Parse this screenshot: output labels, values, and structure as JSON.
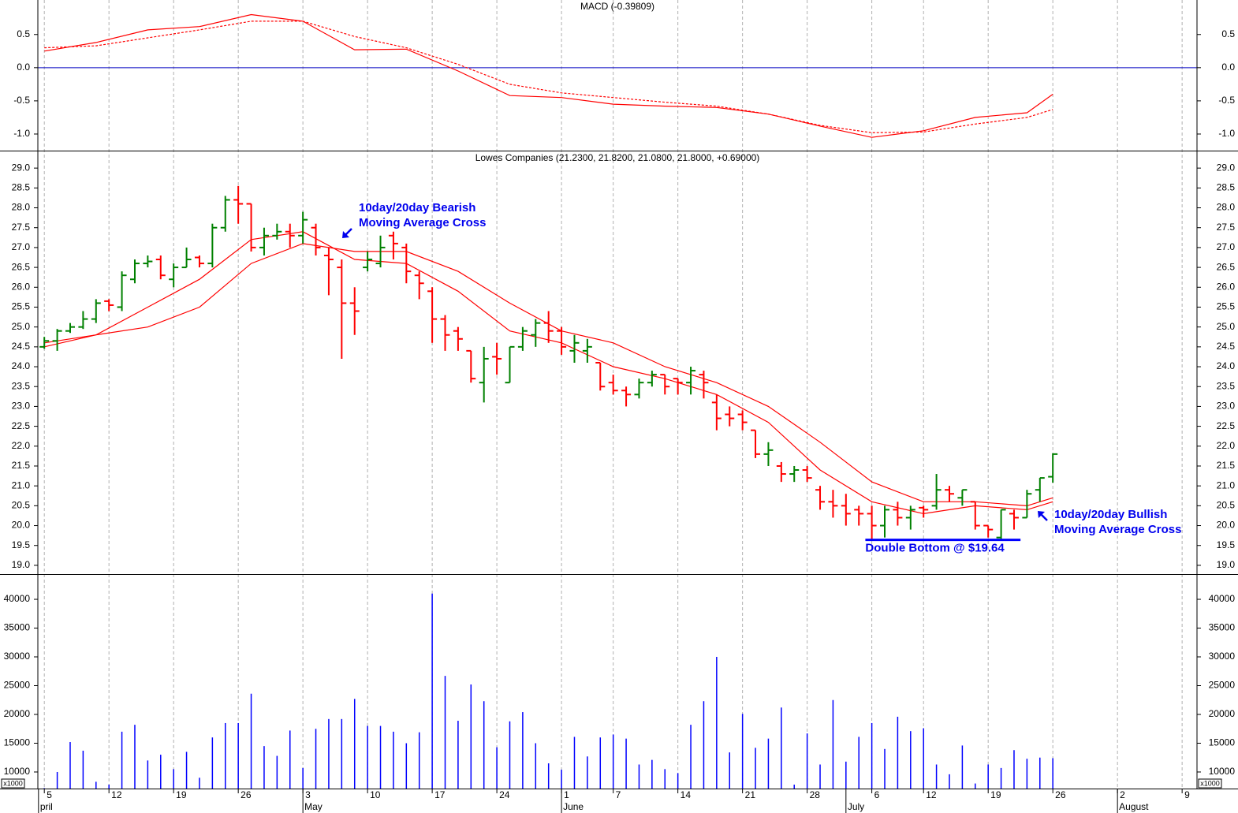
{
  "x_axis": {
    "xlim": [
      -0.5,
      89.15
    ],
    "grid": true,
    "xticks": [
      {
        "value": 0,
        "label": "5"
      },
      {
        "value": 5,
        "label": "12"
      },
      {
        "value": 10,
        "label": "19"
      },
      {
        "value": 15,
        "label": "26"
      },
      {
        "value": 20,
        "label": "3"
      },
      {
        "value": 25,
        "label": "10"
      },
      {
        "value": 30,
        "label": "17"
      },
      {
        "value": 35,
        "label": "24"
      },
      {
        "value": 40,
        "label": "1"
      },
      {
        "value": 44,
        "label": "7"
      },
      {
        "value": 49,
        "label": "14"
      },
      {
        "value": 54,
        "label": "21"
      },
      {
        "value": 59,
        "label": "28"
      },
      {
        "value": 64,
        "label": "6"
      },
      {
        "value": 68,
        "label": "12"
      },
      {
        "value": 73,
        "label": "19"
      },
      {
        "value": 78,
        "label": "26"
      },
      {
        "value": 83,
        "label": "2"
      },
      {
        "value": 88,
        "label": "9"
      }
    ],
    "month_ticks": [
      {
        "value": -0.45,
        "label": "pril"
      },
      {
        "value": 20,
        "label": "May"
      },
      {
        "value": 40,
        "label": "June"
      },
      {
        "value": 62,
        "label": "July"
      },
      {
        "value": 83,
        "label": "August"
      }
    ]
  },
  "chart_data": [
    {
      "type": "line",
      "title": "MACD (-0.39809)",
      "x": [
        0,
        4,
        8,
        12,
        16,
        20,
        24,
        28,
        32,
        36,
        40,
        44,
        48,
        52,
        56,
        60,
        64,
        68,
        72,
        76,
        78
      ],
      "series": [
        {
          "color": "#ff0000",
          "dashed": false,
          "values": [
            0.25,
            0.38,
            0.57,
            0.62,
            0.8,
            0.7,
            0.27,
            0.28,
            -0.05,
            -0.42,
            -0.45,
            -0.55,
            -0.58,
            -0.6,
            -0.7,
            -0.88,
            -1.05,
            -0.95,
            -0.75,
            -0.68,
            -0.4
          ]
        },
        {
          "color": "#ff0000",
          "dashed": true,
          "values": [
            0.3,
            0.33,
            0.45,
            0.57,
            0.7,
            0.7,
            0.47,
            0.3,
            0.05,
            -0.25,
            -0.38,
            -0.45,
            -0.52,
            -0.58,
            -0.7,
            -0.87,
            -0.98,
            -0.97,
            -0.85,
            -0.75,
            -0.63
          ]
        }
      ],
      "hline": {
        "value": 0,
        "color": "#0000c0"
      },
      "ylim": [
        -1.25,
        1.02
      ],
      "yticks": [
        {
          "value": -1,
          "label": "-1.0"
        },
        -0.5,
        {
          "value": 0,
          "label": "0.0"
        },
        0.5
      ]
    },
    {
      "type": "ohlc",
      "title": "Lowes Companies (21.2300, 21.8200, 21.0800, 21.8000, +0.69000)",
      "up_color": "#008000",
      "down_color": "#ff0000",
      "open": [
        24.5,
        24.65,
        24.9,
        25.0,
        25.2,
        25.65,
        25.5,
        26.2,
        26.6,
        26.7,
        26.2,
        26.5,
        26.75,
        26.6,
        27.5,
        28.2,
        28.1,
        27.0,
        27.3,
        27.4,
        27.3,
        27.5,
        26.8,
        26.5,
        25.6,
        26.5,
        26.6,
        27.3,
        27.0,
        26.3,
        25.9,
        25.2,
        24.9,
        24.4,
        23.6,
        24.25,
        23.6,
        24.5,
        24.8,
        25.1,
        24.9,
        24.4,
        24.4,
        24.1,
        23.6,
        23.4,
        23.3,
        23.6,
        23.8,
        23.7,
        23.6,
        23.8,
        23.1,
        22.8,
        22.8,
        22.4,
        21.8,
        21.5,
        21.3,
        21.4,
        20.9,
        20.6,
        20.5,
        20.4,
        20.3,
        20.0,
        20.4,
        20.2,
        20.45,
        20.5,
        20.9,
        20.7,
        20.6,
        20.0,
        19.7,
        20.3,
        20.2,
        20.9,
        21.23
      ],
      "high": [
        24.75,
        24.95,
        25.1,
        25.4,
        25.7,
        25.7,
        26.4,
        26.7,
        26.8,
        26.8,
        26.6,
        27.0,
        26.8,
        27.6,
        28.3,
        28.55,
        28.1,
        27.5,
        27.6,
        27.6,
        27.9,
        27.6,
        27.0,
        26.7,
        26.0,
        26.9,
        27.3,
        27.4,
        27.1,
        26.4,
        26.0,
        25.3,
        25.0,
        24.4,
        24.5,
        24.6,
        24.5,
        25.0,
        25.2,
        25.4,
        25.0,
        24.8,
        24.7,
        24.1,
        23.8,
        23.5,
        23.7,
        23.9,
        23.8,
        23.7,
        24.0,
        23.9,
        23.3,
        23.0,
        22.9,
        22.4,
        22.1,
        21.6,
        21.5,
        21.5,
        21.0,
        20.9,
        20.8,
        20.5,
        20.5,
        20.5,
        20.6,
        20.5,
        20.5,
        21.3,
        21.0,
        20.9,
        20.6,
        20.0,
        20.4,
        20.4,
        20.9,
        21.2,
        21.82
      ],
      "low": [
        24.45,
        24.4,
        24.85,
        24.95,
        25.1,
        25.4,
        25.4,
        26.1,
        26.5,
        26.2,
        26.0,
        26.5,
        26.5,
        26.5,
        27.4,
        27.6,
        26.9,
        26.8,
        27.2,
        27.0,
        27.1,
        26.8,
        25.8,
        24.2,
        24.8,
        26.4,
        26.5,
        26.7,
        26.1,
        25.7,
        24.6,
        24.4,
        24.4,
        23.6,
        23.1,
        23.8,
        23.6,
        24.4,
        24.5,
        24.6,
        24.3,
        24.1,
        24.1,
        23.4,
        23.3,
        23.0,
        23.2,
        23.5,
        23.3,
        23.3,
        23.3,
        23.2,
        22.4,
        22.5,
        22.4,
        21.7,
        21.5,
        21.1,
        21.1,
        21.1,
        20.4,
        20.2,
        20.0,
        20.0,
        19.64,
        19.7,
        20.0,
        19.9,
        20.2,
        20.4,
        20.6,
        20.5,
        19.9,
        19.7,
        19.64,
        19.9,
        20.2,
        20.6,
        21.08
      ],
      "close": [
        24.65,
        24.9,
        25.0,
        25.2,
        25.6,
        25.55,
        26.3,
        26.6,
        26.65,
        26.3,
        26.5,
        26.7,
        26.6,
        27.5,
        28.2,
        28.1,
        27.0,
        27.3,
        27.4,
        27.3,
        27.7,
        27.0,
        26.7,
        25.6,
        25.4,
        26.7,
        27.0,
        27.1,
        26.4,
        26.1,
        25.2,
        24.8,
        24.7,
        23.7,
        24.2,
        24.2,
        24.5,
        24.9,
        25.1,
        24.9,
        24.5,
        24.6,
        24.5,
        23.5,
        23.4,
        23.3,
        23.6,
        23.8,
        23.5,
        23.6,
        23.9,
        23.6,
        22.7,
        22.7,
        22.6,
        21.8,
        21.9,
        21.3,
        21.4,
        21.2,
        20.6,
        20.5,
        20.3,
        20.3,
        20.0,
        20.4,
        20.2,
        20.4,
        20.4,
        20.9,
        20.8,
        20.9,
        20.0,
        19.9,
        20.4,
        20.2,
        20.8,
        21.2,
        21.8
      ],
      "series": [
        {
          "color": "#ff0000",
          "x": [
            0,
            4,
            8,
            12,
            16,
            20,
            24,
            28,
            32,
            36,
            40,
            44,
            48,
            52,
            56,
            60,
            64,
            68,
            72,
            76,
            78
          ],
          "values": [
            24.6,
            24.8,
            25.5,
            26.2,
            27.2,
            27.4,
            26.7,
            26.6,
            25.9,
            24.9,
            24.6,
            24.0,
            23.7,
            23.3,
            22.6,
            21.4,
            20.6,
            20.3,
            20.5,
            20.4,
            20.6
          ]
        },
        {
          "color": "#ff0000",
          "x": [
            0,
            4,
            8,
            12,
            16,
            20,
            24,
            28,
            32,
            36,
            40,
            44,
            48,
            52,
            56,
            60,
            64,
            68,
            72,
            76,
            78
          ],
          "values": [
            24.5,
            24.8,
            25.0,
            25.5,
            26.6,
            27.1,
            26.9,
            26.9,
            26.4,
            25.6,
            24.9,
            24.6,
            24.0,
            23.6,
            23.0,
            22.1,
            21.1,
            20.6,
            20.6,
            20.5,
            20.7
          ]
        }
      ],
      "annotations": [
        [
          "10day/20day Bearish",
          "Moving Average Cross"
        ],
        [
          "10day/20day Bullish",
          "Moving Average Cross"
        ]
      ],
      "support": {
        "value": 19.64,
        "x": [
          63.5,
          75.5
        ],
        "label": "Double Bottom @ $19.64",
        "color": "#0000ff"
      },
      "ylim": [
        18.78,
        29.42
      ],
      "yticks": [
        {
          "value": 19,
          "label": "19.0"
        },
        19.5,
        {
          "value": 20,
          "label": "20.0"
        },
        20.5,
        {
          "value": 21,
          "label": "21.0"
        },
        21.5,
        {
          "value": 22,
          "label": "22.0"
        },
        22.5,
        {
          "value": 23,
          "label": "23.0"
        },
        23.5,
        {
          "value": 24,
          "label": "24.0"
        },
        24.5,
        {
          "value": 25,
          "label": "25.0"
        },
        25.5,
        {
          "value": 26,
          "label": "26.0"
        },
        26.5,
        {
          "value": 27,
          "label": "27.0"
        },
        27.5,
        {
          "value": 28,
          "label": "28.0"
        },
        28.5,
        {
          "value": 29,
          "label": "29.0"
        }
      ]
    },
    {
      "type": "bar",
      "color": "#0000ff",
      "unit_label": "x1000",
      "values": [
        7200,
        10000,
        15200,
        13700,
        8300,
        7800,
        17000,
        18200,
        12000,
        13000,
        10500,
        13500,
        9000,
        16000,
        18500,
        18500,
        23600,
        14500,
        12800,
        17200,
        10700,
        17500,
        19200,
        19200,
        22700,
        18000,
        18000,
        17000,
        15000,
        16900,
        41000,
        26700,
        18900,
        25200,
        22300,
        14300,
        18800,
        20400,
        15000,
        11500,
        10400,
        16100,
        12700,
        16000,
        16500,
        15800,
        11300,
        12100,
        10500,
        9800,
        18200,
        22300,
        30000,
        13400,
        20100,
        14200,
        15800,
        21200,
        7800,
        16700,
        11300,
        22500,
        11800,
        16100,
        18500,
        14000,
        19600,
        17100,
        17600,
        11300,
        9600,
        14600,
        8000,
        11300,
        10700,
        13800,
        12300,
        12500,
        12400
      ],
      "ylim": [
        7120,
        44250
      ],
      "yticks": [
        10000,
        15000,
        20000,
        25000,
        30000,
        35000,
        40000
      ]
    }
  ]
}
